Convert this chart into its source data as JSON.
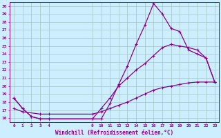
{
  "xlabel": "Windchill (Refroidissement éolien,°C)",
  "background_color": "#cceeff",
  "grid_color": "#aacccc",
  "line_color": "#880088",
  "xlim": [
    -0.5,
    23.5
  ],
  "ylim": [
    15.5,
    30.5
  ],
  "xtick_positions": [
    0,
    1,
    2,
    3,
    4,
    9,
    10,
    11,
    12,
    13,
    14,
    15,
    16,
    17,
    18,
    19,
    20,
    21,
    22,
    23
  ],
  "xtick_labels": [
    "0",
    "1",
    "2",
    "3",
    "4",
    "9",
    "10",
    "11",
    "12",
    "13",
    "14",
    "15",
    "16",
    "17",
    "18",
    "19",
    "20",
    "21",
    "22",
    "23"
  ],
  "yticks": [
    16,
    17,
    18,
    19,
    20,
    21,
    22,
    23,
    24,
    25,
    26,
    27,
    28,
    29,
    30
  ],
  "line1_x": [
    0,
    1,
    2,
    3,
    4,
    9,
    10,
    11,
    12,
    13,
    14,
    15,
    16,
    17,
    18,
    19,
    20,
    21,
    22,
    23
  ],
  "line1_y": [
    18.5,
    17.2,
    16.2,
    15.9,
    15.9,
    15.9,
    15.9,
    17.8,
    20.2,
    22.5,
    25.2,
    27.6,
    30.3,
    29.0,
    27.2,
    26.8,
    24.5,
    24.0,
    23.5,
    20.5
  ],
  "line2_x": [
    0,
    1,
    2,
    3,
    4,
    9,
    10,
    11,
    12,
    13,
    14,
    15,
    16,
    17,
    18,
    19,
    20,
    21,
    22,
    23
  ],
  "line2_y": [
    18.5,
    17.2,
    16.2,
    15.9,
    15.9,
    15.9,
    17.2,
    18.5,
    20.0,
    21.0,
    22.0,
    22.8,
    23.8,
    24.8,
    25.2,
    25.0,
    24.8,
    24.5,
    23.5,
    20.5
  ],
  "line3_x": [
    0,
    1,
    3,
    4,
    9,
    10,
    11,
    12,
    13,
    14,
    15,
    16,
    17,
    18,
    19,
    20,
    21,
    22,
    23
  ],
  "line3_y": [
    17.2,
    16.8,
    16.5,
    16.5,
    16.5,
    16.8,
    17.2,
    17.6,
    18.0,
    18.5,
    19.0,
    19.5,
    19.8,
    20.0,
    20.2,
    20.4,
    20.5,
    20.5,
    20.5
  ]
}
